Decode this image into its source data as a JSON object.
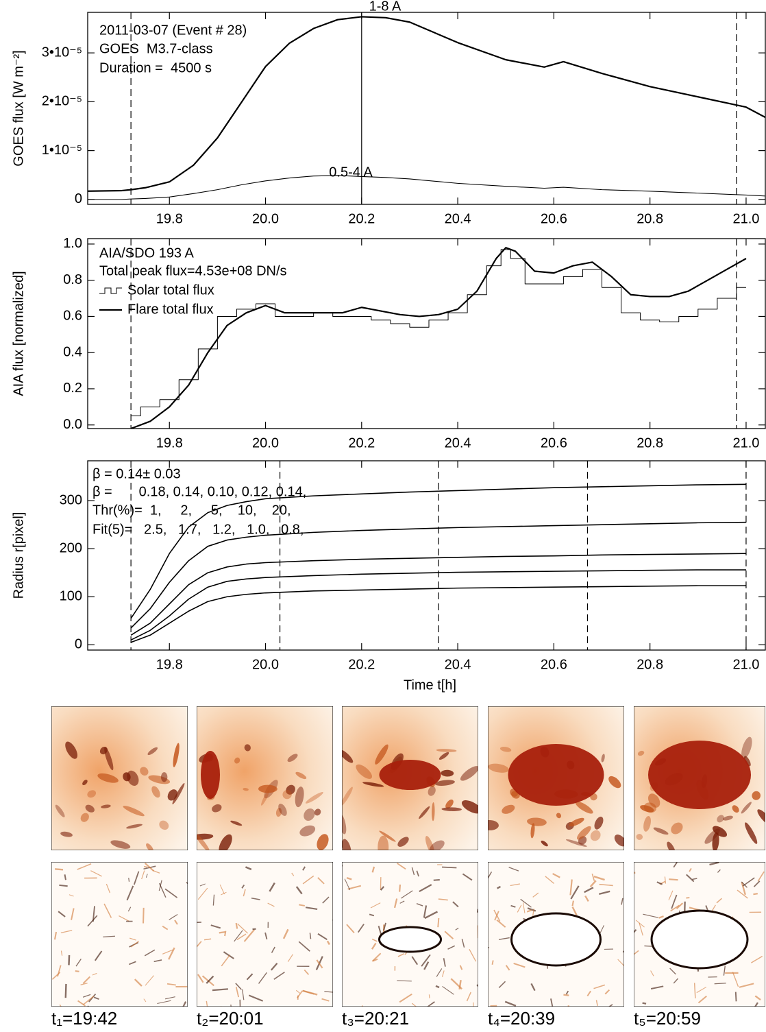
{
  "chart_data": [
    {
      "type": "line",
      "ylabel": "GOES flux [W m⁻²]",
      "annotations": [
        "2011-03-07 (Event # 28)",
        "GOES  M3.7-class",
        "Duration =  4500 s"
      ],
      "x": [
        19.63,
        19.7,
        19.72,
        19.75,
        19.8,
        19.85,
        19.9,
        19.95,
        20.0,
        20.05,
        20.1,
        20.15,
        20.2,
        20.25,
        20.3,
        20.4,
        20.5,
        20.58,
        20.62,
        20.7,
        20.8,
        20.9,
        21.0,
        21.04
      ],
      "series": [
        {
          "name": "1-8 A",
          "color": "#000000",
          "linewidth": 2.2,
          "values": [
            1.7e-06,
            1.8e-06,
            2e-06,
            2.4e-06,
            3.6e-06,
            7e-06,
            1.26e-05,
            1.99e-05,
            2.72e-05,
            3.2e-05,
            3.5e-05,
            3.68e-05,
            3.74e-05,
            3.72e-05,
            3.63e-05,
            3.21e-05,
            2.86e-05,
            2.71e-05,
            2.82e-05,
            2.58e-05,
            2.31e-05,
            2.1e-05,
            1.89e-05,
            1.68e-05
          ]
        },
        {
          "name": "0.5-4 A",
          "color": "#000000",
          "linewidth": 1.1,
          "values": [
            0,
            0,
            1e-07,
            2e-07,
            5e-07,
            1.2e-06,
            2e-06,
            3e-06,
            3.8e-06,
            4.4e-06,
            4.8e-06,
            4.9e-06,
            4.7e-06,
            4.5e-06,
            4.2e-06,
            3.3e-06,
            2.7e-06,
            2.3e-06,
            2.5e-06,
            2e-06,
            1.7e-06,
            1.3e-06,
            9e-07,
            7e-07
          ]
        }
      ],
      "vlines": [
        {
          "x": 19.72,
          "dashed": true
        },
        {
          "x": 20.2,
          "dashed": false
        },
        {
          "x": 20.98,
          "dashed": true
        }
      ],
      "xlim": [
        19.63,
        21.04
      ],
      "xticks": [
        19.8,
        {
          "value": 20,
          "label": "20.0"
        },
        20.2,
        20.4,
        20.6,
        20.8,
        {
          "value": 21,
          "label": "21.0"
        }
      ],
      "ylim": [
        -1e-06,
        3.83e-05
      ],
      "yticks": [
        0,
        {
          "value": 1e-05,
          "label": "1•10⁻⁵"
        },
        {
          "value": 2e-05,
          "label": "2•10⁻⁵"
        },
        {
          "value": 3e-05,
          "label": "3•10⁻⁵"
        }
      ]
    },
    {
      "type": "line",
      "ylabel": "AIA flux [normalized]",
      "annotations": [
        "AIA/SDO 193 A",
        "Total peak flux=4.53e+08 DN/s"
      ],
      "legend": "upper left",
      "x": [
        19.72,
        19.76,
        19.8,
        19.84,
        19.88,
        19.92,
        19.96,
        20.0,
        20.04,
        20.08,
        20.12,
        20.16,
        20.2,
        20.24,
        20.28,
        20.32,
        20.36,
        20.4,
        20.44,
        20.48,
        20.5,
        20.52,
        20.56,
        20.6,
        20.64,
        20.68,
        20.72,
        20.76,
        20.8,
        20.84,
        20.88,
        20.92,
        20.96,
        21.0
      ],
      "series": [
        {
          "name": "Solar total flux",
          "color": "#000000",
          "linewidth": 1,
          "step": true,
          "values": [
            0.05,
            0.1,
            0.14,
            0.25,
            0.42,
            0.6,
            0.64,
            0.67,
            0.6,
            0.6,
            0.62,
            0.6,
            0.6,
            0.58,
            0.56,
            0.54,
            0.58,
            0.62,
            0.72,
            0.88,
            0.97,
            0.92,
            0.78,
            0.78,
            0.82,
            0.86,
            0.76,
            0.62,
            0.58,
            0.57,
            0.6,
            0.64,
            0.7,
            0.76
          ]
        },
        {
          "name": "Flare total flux",
          "color": "#000000",
          "linewidth": 2.2,
          "values": [
            -0.02,
            0.02,
            0.1,
            0.22,
            0.4,
            0.55,
            0.62,
            0.66,
            0.62,
            0.62,
            0.62,
            0.62,
            0.65,
            0.63,
            0.61,
            0.6,
            0.61,
            0.64,
            0.74,
            0.92,
            0.98,
            0.96,
            0.85,
            0.84,
            0.88,
            0.9,
            0.82,
            0.72,
            0.71,
            0.71,
            0.74,
            0.8,
            0.86,
            0.92
          ]
        }
      ],
      "vlines": [
        {
          "x": 19.72,
          "dashed": true
        },
        {
          "x": 20.98,
          "dashed": true
        }
      ],
      "xlim": [
        19.63,
        21.04
      ],
      "xticks": [
        19.8,
        {
          "value": 20,
          "label": "20.0"
        },
        20.2,
        20.4,
        20.6,
        20.8,
        {
          "value": 21,
          "label": "21.0"
        }
      ],
      "ylim": [
        -0.02,
        1.03
      ],
      "yticks": [
        {
          "value": 0,
          "label": "0.0"
        },
        0.2,
        0.4,
        0.6,
        0.8,
        {
          "value": 1,
          "label": "1.0"
        }
      ]
    },
    {
      "type": "line",
      "ylabel": "Radius  r[pixel]",
      "xlabel": "Time t[h]",
      "annotations": [
        "β = 0.14± 0.03",
        "β =       0.18, 0.14, 0.10, 0.12, 0.14,",
        "Thr(%)=  1,     2,     5,    10,    20,",
        "Fit(5)=   2.5,   1.7,   1.2,   1.0,   0.8,"
      ],
      "x": [
        19.72,
        19.76,
        19.8,
        19.84,
        19.88,
        19.92,
        19.96,
        20.0,
        20.1,
        20.2,
        20.3,
        20.4,
        20.5,
        20.6,
        20.7,
        20.8,
        20.9,
        21.0
      ],
      "series": [
        {
          "color": "#000000",
          "linewidth": 1.6,
          "values": [
            55,
            115,
            190,
            245,
            275,
            290,
            298,
            304,
            310,
            314,
            318,
            321,
            324,
            327,
            329,
            331,
            333,
            334
          ]
        },
        {
          "color": "#000000",
          "linewidth": 1.6,
          "values": [
            35,
            75,
            130,
            175,
            205,
            218,
            224,
            228,
            234,
            238,
            241,
            244,
            246,
            248,
            250,
            252,
            254,
            255
          ]
        },
        {
          "color": "#000000",
          "linewidth": 1.6,
          "values": [
            20,
            45,
            85,
            125,
            150,
            162,
            168,
            171,
            175,
            178,
            180,
            182,
            184,
            185,
            187,
            188,
            189,
            190
          ]
        },
        {
          "color": "#000000",
          "linewidth": 1.6,
          "values": [
            10,
            30,
            60,
            95,
            120,
            132,
            137,
            140,
            144,
            147,
            149,
            151,
            152,
            153,
            154,
            155,
            156,
            156
          ]
        },
        {
          "color": "#000000",
          "linewidth": 1.6,
          "values": [
            5,
            20,
            45,
            70,
            90,
            100,
            105,
            108,
            112,
            114,
            116,
            118,
            119,
            120,
            121,
            122,
            123,
            123
          ]
        }
      ],
      "vlines": [
        {
          "x": 19.72,
          "dashed": true
        },
        {
          "x": 20.03,
          "dashed": true
        },
        {
          "x": 20.36,
          "dashed": true
        },
        {
          "x": 20.67,
          "dashed": true
        },
        {
          "x": 21.0,
          "dashed": true
        }
      ],
      "xlim": [
        19.63,
        21.04
      ],
      "xticks": [
        19.8,
        {
          "value": 20,
          "label": "20.0"
        },
        20.2,
        20.4,
        20.6,
        20.8,
        {
          "value": 21,
          "label": "21.0"
        }
      ],
      "ylim": [
        -11,
        383
      ],
      "yticks": [
        0,
        100,
        200,
        300
      ]
    }
  ],
  "image_labels": [
    "t₁=19:42",
    "t₂=20:01",
    "t₃=20:21",
    "t₄=20:39",
    "t₅=20:59"
  ]
}
